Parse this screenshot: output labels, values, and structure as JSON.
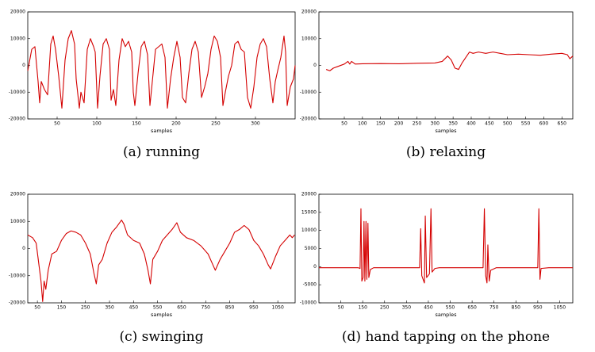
{
  "chart_data": [
    {
      "type": "line",
      "caption": "(a) running",
      "xlabel": "samples",
      "color": "#d40000",
      "grid": false,
      "xlim": [
        13,
        350
      ],
      "ylim": [
        -20000,
        20000
      ],
      "xticks": [
        50,
        100,
        150,
        200,
        250,
        300
      ],
      "yticks": [
        -20000,
        -10000,
        0,
        10000,
        20000
      ],
      "x": [
        13,
        18,
        22,
        26,
        28,
        30,
        34,
        38,
        42,
        45,
        48,
        52,
        56,
        60,
        64,
        68,
        72,
        74,
        78,
        80,
        84,
        88,
        92,
        96,
        98,
        101,
        104,
        108,
        112,
        116,
        118,
        121,
        124,
        128,
        132,
        136,
        140,
        144,
        146,
        148,
        152,
        156,
        160,
        164,
        167,
        170,
        174,
        178,
        182,
        186,
        189,
        193,
        197,
        201,
        205,
        208,
        212,
        216,
        220,
        224,
        228,
        232,
        236,
        240,
        244,
        248,
        252,
        256,
        259,
        262,
        266,
        270,
        274,
        278,
        282,
        286,
        290,
        294,
        298,
        302,
        306,
        310,
        314,
        318,
        322,
        325,
        328,
        332,
        336,
        338,
        340,
        344,
        348,
        350
      ],
      "values": [
        -2000,
        6000,
        7000,
        -6000,
        -14000,
        -6000,
        -9000,
        -11000,
        8000,
        11000,
        6000,
        -4000,
        -16000,
        2000,
        10000,
        13000,
        8000,
        -5000,
        -16000,
        -10000,
        -14000,
        6000,
        10000,
        7000,
        5000,
        -16000,
        -4000,
        8000,
        10000,
        6000,
        -13000,
        -9000,
        -15000,
        2000,
        10000,
        7000,
        9000,
        5000,
        -10000,
        -15000,
        -3000,
        7000,
        9000,
        4000,
        -15000,
        -6000,
        6000,
        7000,
        8000,
        3000,
        -16000,
        -5000,
        3000,
        9000,
        3000,
        -12000,
        -14000,
        -3000,
        6000,
        9000,
        5000,
        -12000,
        -8000,
        -3000,
        6000,
        11000,
        9000,
        3000,
        -15000,
        -10000,
        -4000,
        0,
        8000,
        9000,
        6000,
        5000,
        -12000,
        -16000,
        -8000,
        3000,
        8000,
        10000,
        7000,
        -5000,
        -14000,
        -6000,
        -2000,
        3000,
        11000,
        5000,
        -15000,
        -8000,
        -5000,
        0
      ]
    },
    {
      "type": "line",
      "caption": "(b) relaxing",
      "xlabel": "samples",
      "color": "#d40000",
      "grid": false,
      "xlim": [
        -20,
        680
      ],
      "ylim": [
        -20000,
        20000
      ],
      "xticks": [
        50,
        100,
        150,
        200,
        250,
        300,
        350,
        400,
        450,
        500,
        550,
        600,
        650
      ],
      "yticks": [
        -20000,
        -10000,
        0,
        10000,
        20000
      ],
      "x": [
        0,
        10,
        20,
        30,
        50,
        60,
        65,
        70,
        80,
        100,
        150,
        200,
        250,
        300,
        320,
        335,
        345,
        355,
        365,
        375,
        385,
        395,
        405,
        420,
        440,
        460,
        480,
        500,
        530,
        560,
        590,
        620,
        650,
        665,
        672,
        680
      ],
      "values": [
        -1500,
        -2000,
        -1000,
        -500,
        500,
        1500,
        500,
        1500,
        500,
        600,
        700,
        600,
        800,
        900,
        1500,
        3500,
        2000,
        -1000,
        -1500,
        1000,
        3000,
        5000,
        4500,
        5000,
        4500,
        5000,
        4500,
        4000,
        4200,
        4000,
        3800,
        4200,
        4500,
        4000,
        2500,
        3500
      ]
    },
    {
      "type": "line",
      "caption": "(c) swinging",
      "xlabel": "samples",
      "color": "#d40000",
      "grid": false,
      "xlim": [
        10,
        1122
      ],
      "ylim": [
        -20000,
        20000
      ],
      "xticks": [
        50,
        150,
        250,
        350,
        450,
        550,
        650,
        750,
        850,
        950,
        1050
      ],
      "yticks": [
        -20000,
        -10000,
        0,
        10000,
        20000
      ],
      "x": [
        10,
        30,
        45,
        55,
        65,
        72,
        78,
        85,
        95,
        110,
        130,
        150,
        170,
        190,
        210,
        230,
        250,
        270,
        285,
        295,
        305,
        320,
        340,
        360,
        380,
        400,
        410,
        425,
        450,
        475,
        495,
        510,
        520,
        530,
        550,
        570,
        590,
        610,
        630,
        645,
        670,
        700,
        730,
        760,
        780,
        790,
        810,
        830,
        850,
        870,
        890,
        910,
        930,
        950,
        970,
        990,
        1010,
        1020,
        1040,
        1060,
        1080,
        1100,
        1110,
        1120
      ],
      "values": [
        5000,
        4000,
        2000,
        -5000,
        -12000,
        -19500,
        -12000,
        -15000,
        -8000,
        -2000,
        -1000,
        3000,
        5500,
        6500,
        6000,
        5000,
        2000,
        -2000,
        -9000,
        -13000,
        -6000,
        -4000,
        2000,
        6000,
        8000,
        10500,
        9000,
        5000,
        3000,
        2000,
        -2000,
        -8000,
        -13000,
        -4000,
        -1000,
        3000,
        5000,
        7000,
        9500,
        6000,
        4000,
        3000,
        1000,
        -2000,
        -6000,
        -8000,
        -4000,
        -1000,
        2000,
        6000,
        7000,
        8500,
        7000,
        3000,
        1000,
        -2000,
        -6000,
        -7500,
        -3000,
        1000,
        3000,
        5000,
        4000,
        5000
      ]
    },
    {
      "type": "line",
      "caption": "(d) hand tapping on the phone",
      "xlabel": "samples",
      "color": "#d40000",
      "grid": false,
      "xlim": [
        -50,
        1110
      ],
      "ylim": [
        -10000,
        20000
      ],
      "xticks": [
        50,
        150,
        250,
        350,
        450,
        550,
        650,
        750,
        850,
        950,
        1050
      ],
      "yticks": [
        -10000,
        -5000,
        0,
        5000,
        10000,
        15000,
        20000
      ],
      "x": [
        -50,
        130,
        138,
        142,
        146,
        152,
        156,
        160,
        165,
        169,
        174,
        178,
        185,
        200,
        410,
        415,
        420,
        432,
        436,
        442,
        455,
        462,
        467,
        480,
        500,
        700,
        706,
        712,
        718,
        722,
        728,
        735,
        760,
        950,
        955,
        960,
        965,
        1000,
        1110
      ],
      "values": [
        -300,
        -300,
        -500,
        16000,
        -4000,
        -3000,
        12500,
        -4000,
        12500,
        -3500,
        12000,
        -3000,
        -800,
        -300,
        -300,
        10500,
        -2500,
        -4500,
        14000,
        -3000,
        -2000,
        16000,
        -1500,
        -500,
        -300,
        -300,
        16000,
        -2500,
        -4500,
        6000,
        -4000,
        -1000,
        -300,
        -300,
        16000,
        -3500,
        -500,
        -300,
        -300
      ]
    }
  ]
}
